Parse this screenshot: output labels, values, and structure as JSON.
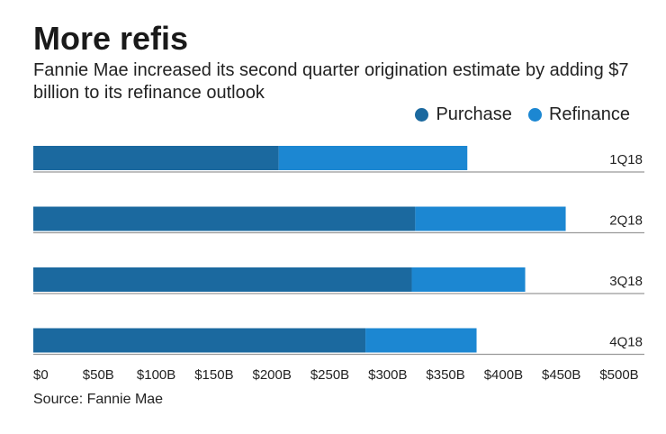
{
  "title": "More refis",
  "subtitle": "Fannie Mae increased its second quarter origination estimate by adding $7 billion to its refinance outlook",
  "source": "Source: Fannie Mae",
  "chart_data": {
    "type": "bar",
    "orientation": "horizontal",
    "stacked": true,
    "categories": [
      "1Q18",
      "2Q18",
      "3Q18",
      "4Q18"
    ],
    "series": [
      {
        "name": "Purchase",
        "color": "#1b699f",
        "values": [
          212,
          330,
          327,
          287
        ]
      },
      {
        "name": "Refinance",
        "color": "#1c87d2",
        "values": [
          163,
          130,
          98,
          96
        ]
      }
    ],
    "xlim": [
      0,
      500
    ],
    "xticks": [
      0,
      50,
      100,
      150,
      200,
      250,
      300,
      350,
      400,
      450,
      500
    ],
    "xtick_labels": [
      "$0",
      "$50B",
      "$100B",
      "$150B",
      "$200B",
      "$250B",
      "$300B",
      "$350B",
      "$400B",
      "$450B",
      "$500B"
    ],
    "legend": "top-right",
    "grid": false
  }
}
